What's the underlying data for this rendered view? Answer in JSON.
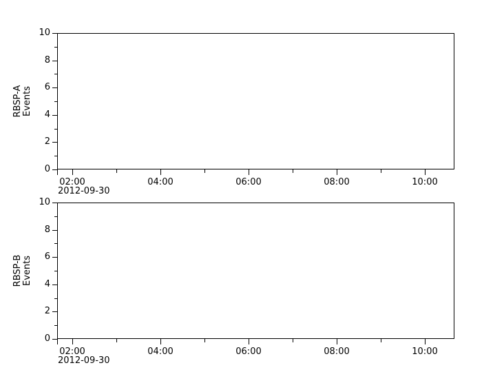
{
  "figure": {
    "background": "#ffffff",
    "axis_color": "#000000",
    "text_color": "#000000"
  },
  "chart_data": [
    {
      "type": "line",
      "panel_id": "rbsp-a",
      "title": "",
      "ylabel_lines": [
        "RBSP-A",
        "Events"
      ],
      "ylim": [
        0,
        10
      ],
      "ytick_major": [
        0,
        2,
        4,
        6,
        8,
        10
      ],
      "ytick_major_labels": [
        "0",
        "2",
        "4",
        "6",
        "8",
        "10"
      ],
      "ytick_minor": [
        1,
        3,
        5,
        7,
        9
      ],
      "xlim_hours": [
        1.66,
        10.67
      ],
      "xtick_major_hours": [
        2,
        4,
        6,
        8,
        10
      ],
      "xtick_major_labels": [
        "02:00",
        "04:00",
        "06:00",
        "08:00",
        "10:00"
      ],
      "xtick_minor_hours": [
        3,
        5,
        7,
        9
      ],
      "date_label": "2012-09-30",
      "grid": false,
      "legend": false,
      "series": []
    },
    {
      "type": "line",
      "panel_id": "rbsp-b",
      "title": "",
      "ylabel_lines": [
        "RBSP-B",
        "Events"
      ],
      "ylim": [
        0,
        10
      ],
      "ytick_major": [
        0,
        2,
        4,
        6,
        8,
        10
      ],
      "ytick_major_labels": [
        "0",
        "2",
        "4",
        "6",
        "8",
        "10"
      ],
      "ytick_minor": [
        1,
        3,
        5,
        7,
        9
      ],
      "xlim_hours": [
        1.66,
        10.67
      ],
      "xtick_major_hours": [
        2,
        4,
        6,
        8,
        10
      ],
      "xtick_major_labels": [
        "02:00",
        "04:00",
        "06:00",
        "08:00",
        "10:00"
      ],
      "xtick_minor_hours": [
        3,
        5,
        7,
        9
      ],
      "date_label": "2012-09-30",
      "grid": false,
      "legend": false,
      "series": []
    }
  ]
}
